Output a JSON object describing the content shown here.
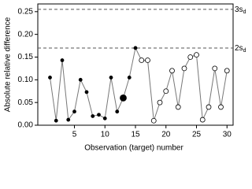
{
  "chart_data": {
    "type": "line",
    "x_label": "Observation (target) number",
    "y_label": "Absolute relative difference",
    "x": [
      1,
      2,
      3,
      4,
      5,
      6,
      7,
      8,
      9,
      10,
      11,
      12,
      13,
      14,
      15,
      16,
      17,
      18,
      19,
      20,
      21,
      22,
      23,
      24,
      25,
      26,
      27,
      28,
      29,
      30
    ],
    "series": [
      {
        "color": "#000000",
        "values": [
          0.105,
          0.01,
          0.143,
          0.012,
          0.03,
          0.1,
          0.073,
          0.02,
          0.023,
          0.015,
          0.105,
          0.03,
          0.06,
          0.105,
          0.17,
          0.143,
          0.143,
          0.01,
          0.05,
          0.075,
          0.12,
          0.04,
          0.125,
          0.15,
          0.155,
          0.012,
          0.04,
          0.125,
          0.04,
          0.12
        ],
        "marker_fill": [
          "filled",
          "filled",
          "filled",
          "filled",
          "filled",
          "filled",
          "filled",
          "filled",
          "filled",
          "filled",
          "filled",
          "filled",
          "filled",
          "filled",
          "filled",
          "open",
          "open",
          "open",
          "open",
          "open",
          "open",
          "open",
          "open",
          "open",
          "open",
          "open",
          "open",
          "open",
          "open",
          "open"
        ],
        "marker_size": [
          2,
          2,
          2,
          2,
          2,
          2,
          2,
          2,
          2,
          2,
          2,
          2,
          4,
          2,
          2,
          3,
          3,
          3,
          3,
          3,
          3,
          3,
          3,
          3,
          3,
          3,
          3,
          3,
          3,
          3
        ]
      }
    ],
    "reference_lines": [
      {
        "value": 0.255,
        "text": "3s",
        "subscript": "d"
      },
      {
        "value": 0.17,
        "text": "2s",
        "subscript": "d"
      }
    ],
    "xlim": [
      -1,
      31
    ],
    "ylim": [
      0,
      0.267
    ],
    "xticks": [
      5,
      10,
      15,
      20,
      25,
      30
    ],
    "yticks": [
      {
        "value": 0,
        "label": "0.00"
      },
      {
        "value": 0.05,
        "label": "0.05"
      },
      {
        "value": 0.1,
        "label": "0.10"
      },
      {
        "value": 0.15,
        "label": "0.15"
      },
      {
        "value": 0.2,
        "label": "0.20"
      },
      {
        "value": 0.25,
        "label": "0.25"
      }
    ]
  }
}
